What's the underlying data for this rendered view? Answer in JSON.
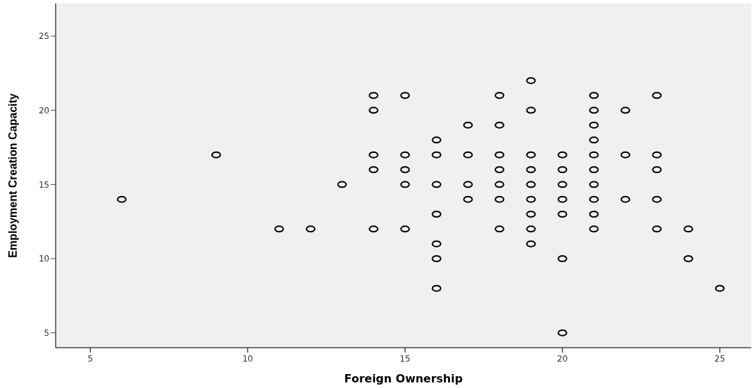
{
  "chart_data": {
    "type": "scatter",
    "xlabel": "Foreign Ownership",
    "ylabel": "Employment Creation Capacity",
    "xlim": [
      3.9,
      26
    ],
    "ylim": [
      4,
      27.2
    ],
    "xticks": [
      5,
      10,
      15,
      20,
      25
    ],
    "yticks": [
      5,
      10,
      15,
      20,
      25
    ],
    "grid": false,
    "marker": "circle",
    "series": [
      {
        "color": "#000000",
        "x": [
          6,
          9,
          11,
          12,
          13,
          14,
          14,
          14,
          14,
          14,
          15,
          15,
          15,
          15,
          15,
          16,
          16,
          16,
          16,
          16,
          16,
          16,
          17,
          17,
          17,
          17,
          18,
          18,
          18,
          18,
          18,
          18,
          18,
          19,
          19,
          19,
          19,
          19,
          19,
          19,
          19,
          19,
          20,
          20,
          20,
          20,
          20,
          20,
          20,
          21,
          21,
          21,
          21,
          21,
          21,
          21,
          21,
          21,
          21,
          22,
          22,
          22,
          23,
          23,
          23,
          23,
          23,
          24,
          24,
          25
        ],
        "values": [
          14,
          17,
          12,
          12,
          15,
          21,
          20,
          17,
          16,
          12,
          21,
          17,
          16,
          15,
          12,
          18,
          17,
          15,
          13,
          11,
          10,
          8,
          19,
          17,
          15,
          14,
          21,
          19,
          17,
          16,
          15,
          14,
          12,
          22,
          20,
          17,
          16,
          15,
          14,
          13,
          12,
          11,
          17,
          16,
          15,
          14,
          13,
          10,
          5,
          21,
          20,
          19,
          18,
          17,
          16,
          15,
          14,
          13,
          12,
          20,
          17,
          14,
          21,
          17,
          16,
          14,
          12,
          12,
          10,
          8
        ]
      }
    ]
  }
}
